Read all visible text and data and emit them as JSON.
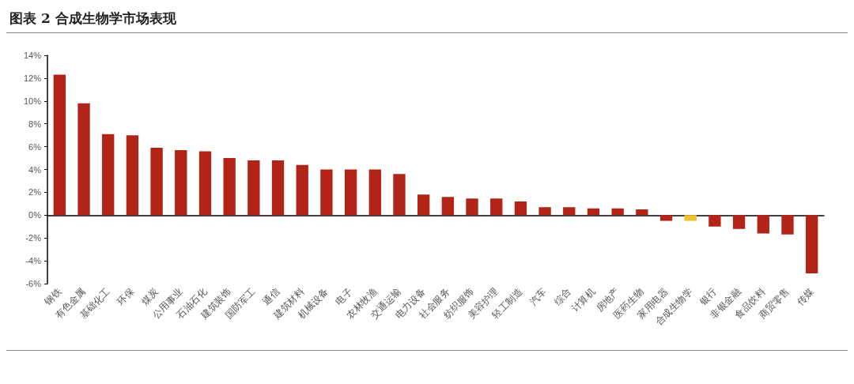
{
  "chart_data": {
    "type": "bar",
    "title": "图表 2 合成生物学市场表现",
    "categories": [
      "钢铁",
      "有色金属",
      "基础化工",
      "环保",
      "煤炭",
      "公用事业",
      "石油石化",
      "建筑装饰",
      "国防军工",
      "通信",
      "建筑材料",
      "机械设备",
      "电子",
      "农林牧渔",
      "交通运输",
      "电力设备",
      "社会服务",
      "纺织服饰",
      "美容护理",
      "轻工制造",
      "汽车",
      "综合",
      "计算机",
      "房地产",
      "医药生物",
      "家用电器",
      "合成生物学",
      "银行",
      "非银金融",
      "食品饮料",
      "商贸零售",
      "传媒"
    ],
    "values": [
      12.3,
      9.8,
      7.1,
      7.0,
      5.9,
      5.7,
      5.6,
      5.0,
      4.8,
      4.8,
      4.4,
      4.0,
      4.0,
      4.0,
      3.6,
      1.8,
      1.6,
      1.45,
      1.45,
      1.2,
      0.7,
      0.7,
      0.6,
      0.6,
      0.5,
      -0.5,
      -0.5,
      -1.0,
      -1.2,
      -1.6,
      -1.7,
      -5.1
    ],
    "colors": [
      "#b22418",
      "#b22418",
      "#b22418",
      "#b22418",
      "#b22418",
      "#b22418",
      "#b22418",
      "#b22418",
      "#b22418",
      "#b22418",
      "#b22418",
      "#b22418",
      "#b22418",
      "#b22418",
      "#b22418",
      "#b22418",
      "#b22418",
      "#b22418",
      "#b22418",
      "#b22418",
      "#b22418",
      "#b22418",
      "#b22418",
      "#b22418",
      "#b22418",
      "#b22418",
      "#f2c230",
      "#b22418",
      "#b22418",
      "#b22418",
      "#b22418",
      "#b22418"
    ],
    "ylim": [
      -6,
      14
    ],
    "yticks": [
      {
        "value": -6,
        "label": "-6%"
      },
      {
        "value": -4,
        "label": "-4%"
      },
      {
        "value": -2,
        "label": "-2%"
      },
      {
        "value": 0,
        "label": "0%"
      },
      {
        "value": 2,
        "label": "2%"
      },
      {
        "value": 4,
        "label": "4%"
      },
      {
        "value": 6,
        "label": "6%"
      },
      {
        "value": 8,
        "label": "8%"
      },
      {
        "value": 10,
        "label": "10%"
      },
      {
        "value": 12,
        "label": "12%"
      },
      {
        "value": 14,
        "label": "14%"
      }
    ],
    "data_labels": false
  }
}
